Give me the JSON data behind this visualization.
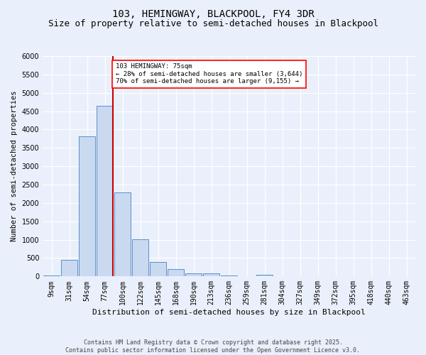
{
  "title": "103, HEMINGWAY, BLACKPOOL, FY4 3DR",
  "subtitle": "Size of property relative to semi-detached houses in Blackpool",
  "xlabel": "Distribution of semi-detached houses by size in Blackpool",
  "ylabel": "Number of semi-detached properties",
  "categories": [
    "9sqm",
    "31sqm",
    "54sqm",
    "77sqm",
    "100sqm",
    "122sqm",
    "145sqm",
    "168sqm",
    "190sqm",
    "213sqm",
    "236sqm",
    "259sqm",
    "281sqm",
    "304sqm",
    "327sqm",
    "349sqm",
    "372sqm",
    "395sqm",
    "418sqm",
    "440sqm",
    "463sqm"
  ],
  "values": [
    30,
    450,
    3820,
    4650,
    2280,
    1020,
    400,
    200,
    90,
    80,
    30,
    10,
    50,
    0,
    0,
    0,
    0,
    0,
    0,
    0,
    0
  ],
  "bar_color": "#c9d9f0",
  "bar_edge_color": "#5b8fc9",
  "red_line_index": 3,
  "annotation_text": "103 HEMINGWAY: 75sqm\n← 28% of semi-detached houses are smaller (3,644)\n70% of semi-detached houses are larger (9,155) →",
  "annotation_box_color": "white",
  "annotation_box_edge_color": "red",
  "red_line_color": "#cc0000",
  "ylim": [
    0,
    6000
  ],
  "yticks": [
    0,
    500,
    1000,
    1500,
    2000,
    2500,
    3000,
    3500,
    4000,
    4500,
    5000,
    5500,
    6000
  ],
  "background_color": "#eaf0fb",
  "grid_color": "white",
  "footer": "Contains HM Land Registry data © Crown copyright and database right 2025.\nContains public sector information licensed under the Open Government Licence v3.0.",
  "title_fontsize": 10,
  "subtitle_fontsize": 9,
  "xlabel_fontsize": 8,
  "ylabel_fontsize": 7.5,
  "tick_fontsize": 7,
  "footer_fontsize": 6
}
